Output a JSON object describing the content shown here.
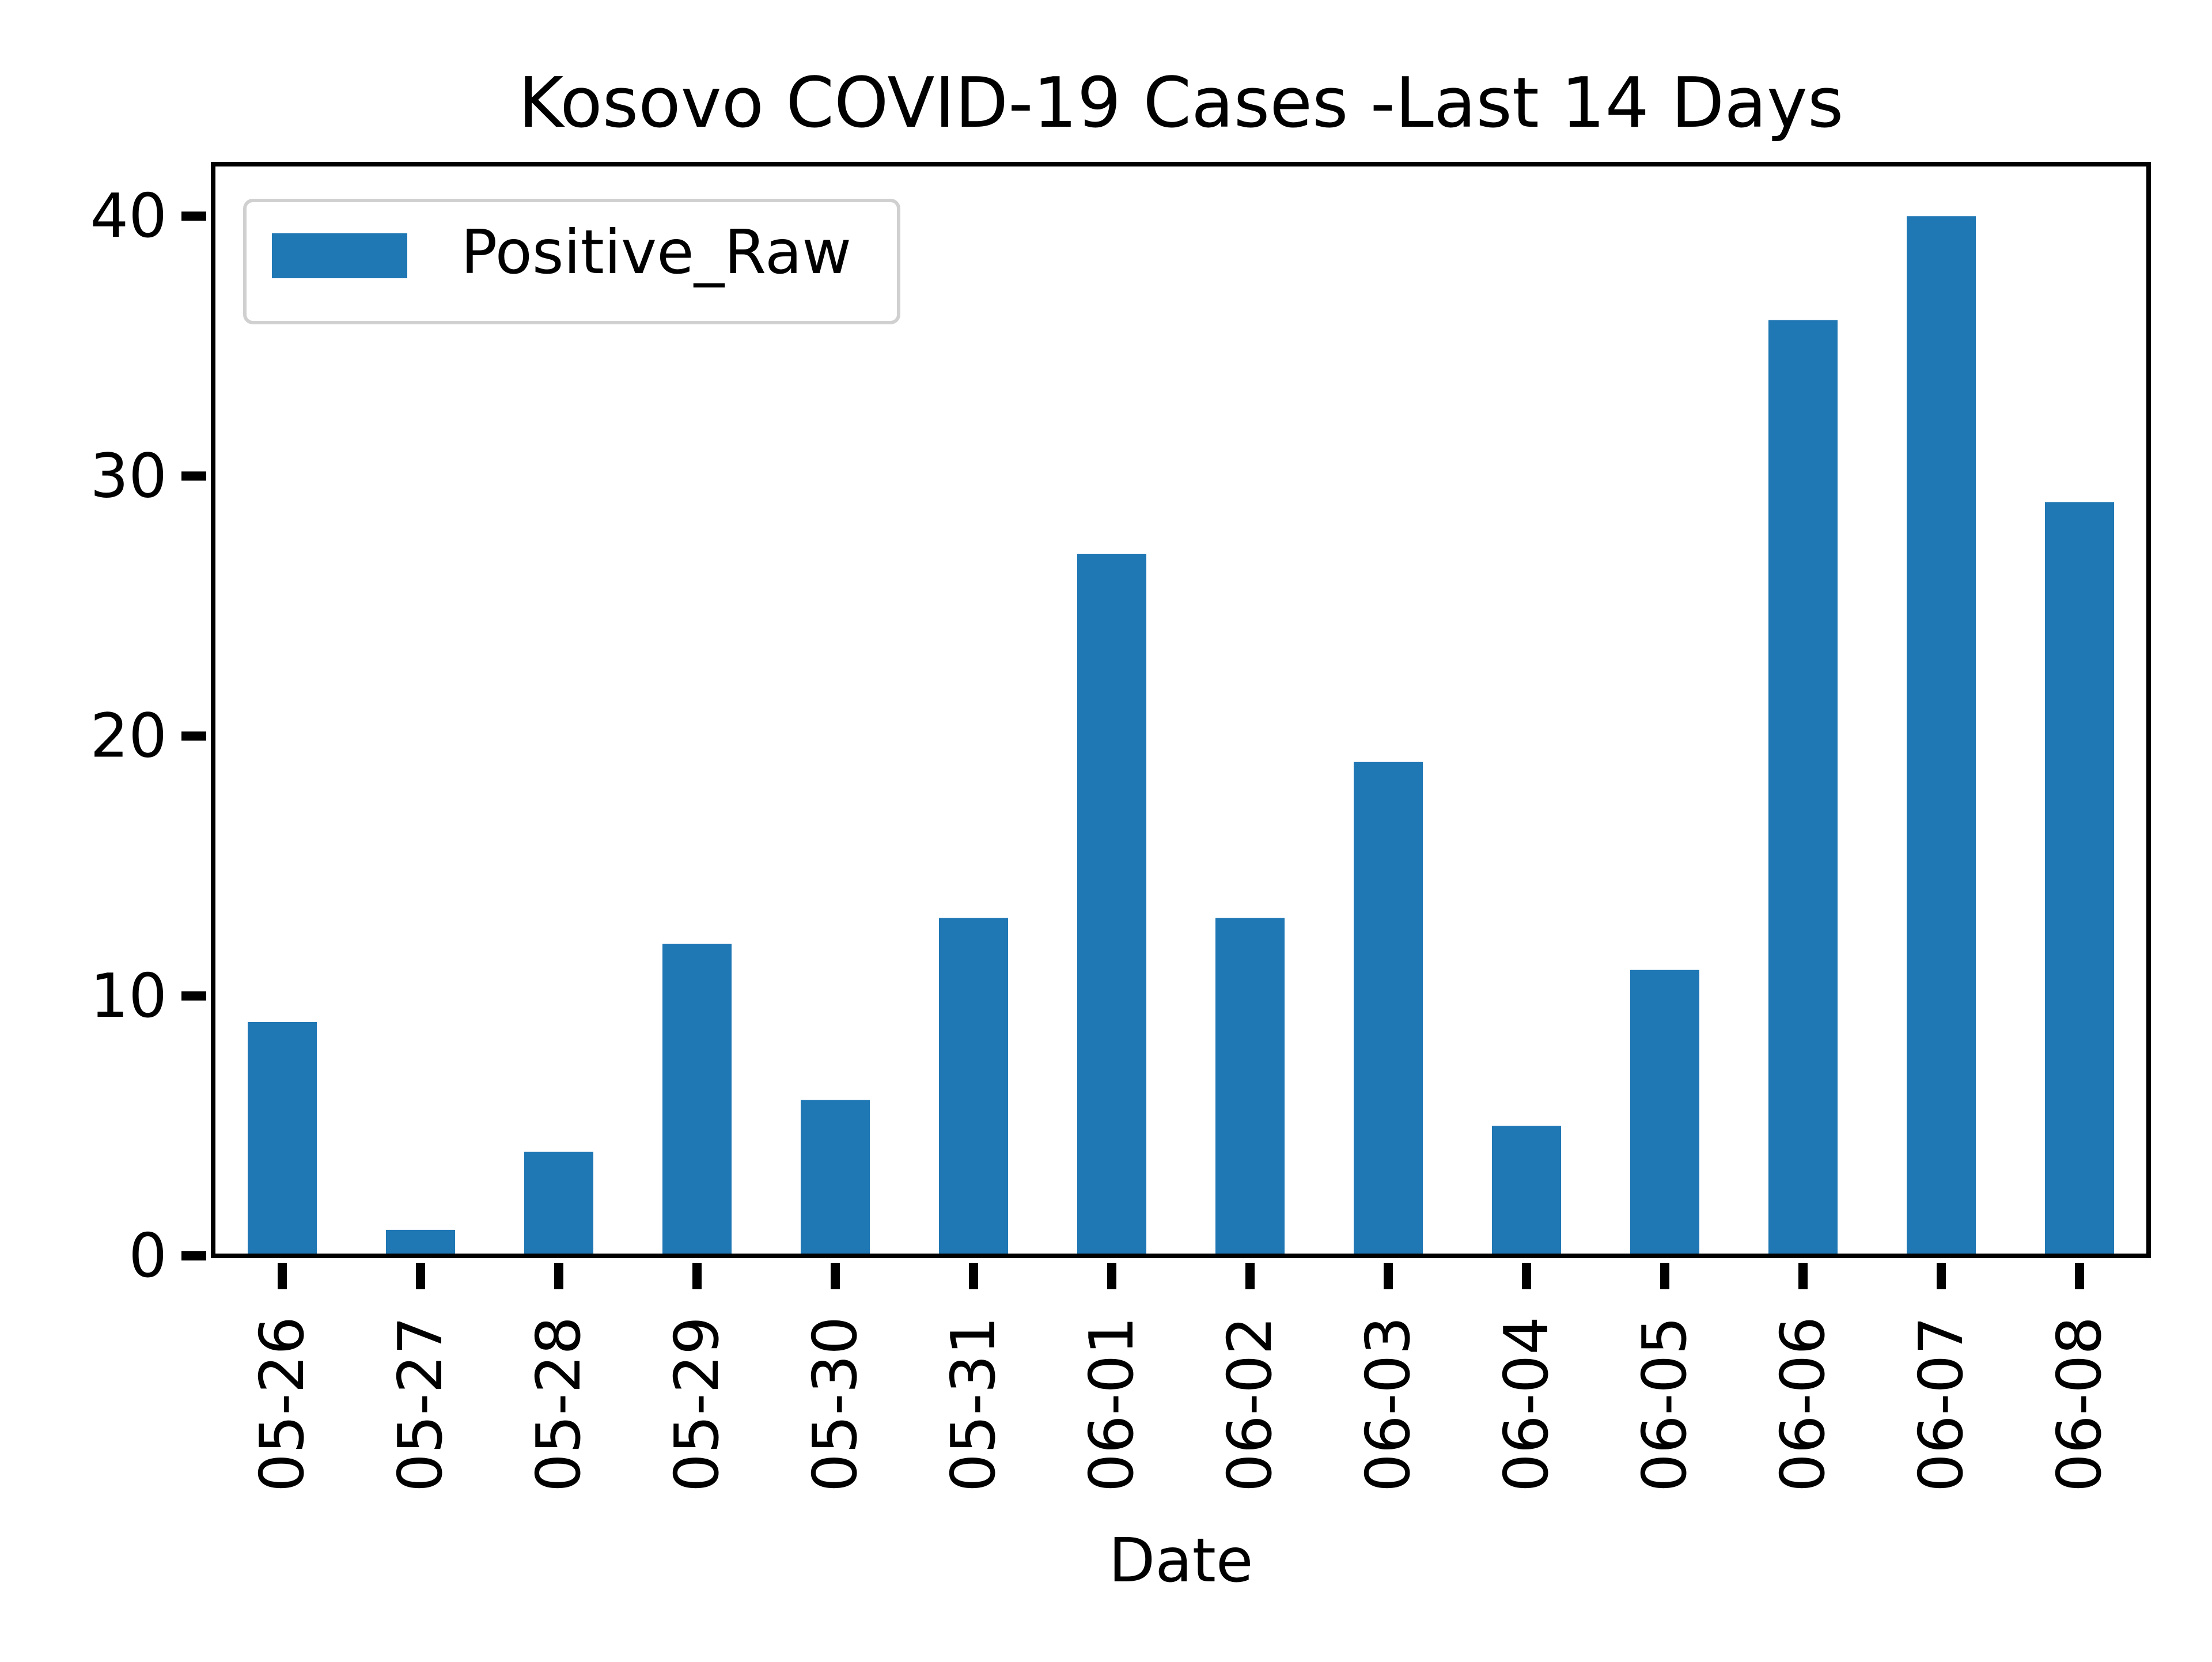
{
  "chart_data": {
    "type": "bar",
    "title": "Kosovo COVID-19 Cases -Last 14 Days",
    "xlabel": "Date",
    "ylabel": "",
    "categories": [
      "05-26",
      "05-27",
      "05-28",
      "05-29",
      "05-30",
      "05-31",
      "06-01",
      "06-02",
      "06-03",
      "06-04",
      "06-05",
      "06-06",
      "06-07",
      "06-08"
    ],
    "series": [
      {
        "name": "Positive_Raw",
        "values": [
          9,
          1,
          4,
          12,
          6,
          13,
          27,
          13,
          19,
          5,
          11,
          36,
          40,
          29
        ]
      }
    ],
    "ylim": [
      0,
      42
    ],
    "yticks": [
      0,
      10,
      20,
      30,
      40
    ],
    "grid": false,
    "legend_position": "upper-left",
    "colors": {
      "bar": "#1f77b4",
      "axis": "#000000",
      "legend_border": "#d0d0d0"
    }
  }
}
